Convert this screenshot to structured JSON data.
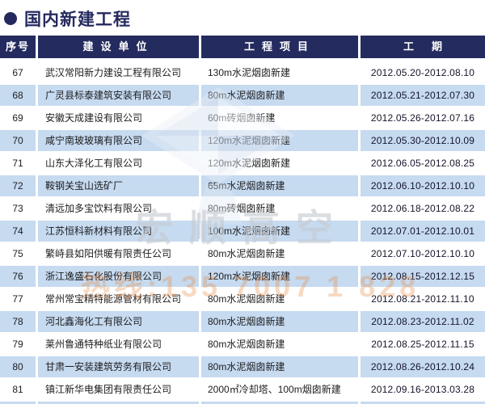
{
  "page": {
    "title": "国内新建工程"
  },
  "table": {
    "headers": [
      "序号",
      "建设单位",
      "工程项目",
      "工期"
    ],
    "rows": [
      {
        "no": "67",
        "company": "武汉常阳新力建设工程有限公司",
        "project": "130m水泥烟囱新建",
        "period": "2012.05.20-2012.08.10"
      },
      {
        "no": "68",
        "company": "广灵县标泰建筑安装有限公司",
        "project": "80m水泥烟囱新建",
        "period": "2012.05.21-2012.07.30"
      },
      {
        "no": "69",
        "company": "安徽天成建设有限公司",
        "project": "60m砖烟囱新建",
        "period": "2012.05.26-2012.07.16"
      },
      {
        "no": "70",
        "company": "咸宁南玻玻璃有限公司",
        "project": "120m水泥烟囱新建",
        "period": "2012.05.30-2012.10.09"
      },
      {
        "no": "71",
        "company": "山东大泽化工有限公司",
        "project": "120m水泥烟囱新建",
        "period": "2012.06.05-2012.08.25"
      },
      {
        "no": "72",
        "company": "鞍钢关宝山选矿厂",
        "project": "65m水泥烟囱新建",
        "period": "2012.06.10-2012.10.10"
      },
      {
        "no": "73",
        "company": "清远加多宝饮料有限公司",
        "project": "80m砖烟囱新建",
        "period": "2012.06.18-2012.08.22"
      },
      {
        "no": "74",
        "company": "江苏恒科新材料有限公司",
        "project": "100m水泥烟囱新建",
        "period": "2012.07.01-2012.10.01"
      },
      {
        "no": "75",
        "company": "繁峙县如阳供暖有限责任公司",
        "project": "80m水泥烟囱新建",
        "period": "2012.07.10-2012.10.10"
      },
      {
        "no": "76",
        "company": "浙江逸盛石化股份有限公司",
        "project": "120m水泥烟囱新建",
        "period": "2012.08.15-2012.12.15"
      },
      {
        "no": "77",
        "company": "常州常宝精特能源管材有限公司",
        "project": "80m水泥烟囱新建",
        "period": "2012.08.21-2012.11.10"
      },
      {
        "no": "78",
        "company": "河北鑫海化工有限公司",
        "project": "80m水泥烟囱新建",
        "period": "2012.08.23-2012.11.02"
      },
      {
        "no": "79",
        "company": "莱州鲁通特种纸业有限公司",
        "project": "80m水泥烟囱新建",
        "period": "2012.08.25-2012.11.15"
      },
      {
        "no": "80",
        "company": "甘肃一安装建筑劳务有限公司",
        "project": "80m水泥烟囱新建",
        "period": "2012.08.26-2012.10.24"
      },
      {
        "no": "81",
        "company": "镇江新华电集团有限责任公司",
        "project": "2000㎡冷却塔、100m烟囱新建",
        "period": "2012.09.16-2013.03.28"
      }
    ]
  },
  "watermark": {
    "brand_text": "宏顺高空",
    "hotline_text": "热线:135 7007 1 828"
  },
  "colors": {
    "header_navy": "#242b5e",
    "title_navy": "#252a5e",
    "row_alt_blue": "#c6daf0",
    "watermark_orange": "#e78a45",
    "watermark_gray": "#c6cad0"
  }
}
